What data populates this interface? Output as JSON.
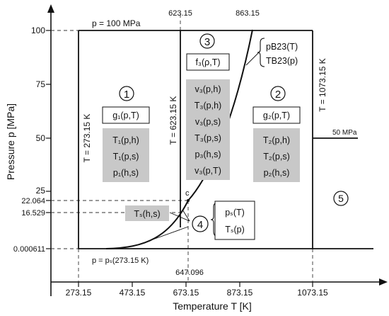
{
  "axes": {
    "x_label": "Temperature T [K]",
    "y_label": "Pressure p [MPa]",
    "x_ticks": [
      "273.15",
      "473.15",
      "673.15",
      "873.15",
      "1073.15"
    ],
    "y_ticks": [
      "100",
      "75",
      "50",
      "25",
      "22.064",
      "16.529",
      "0.000611"
    ]
  },
  "top_labels": {
    "p_max": "p = 100 MPa",
    "t_623": "623.15",
    "t_863": "863.15"
  },
  "bottom_labels": {
    "p_melt": "p = pₛ(273.15 K)",
    "t_crit": "647.096"
  },
  "boundary_labels": {
    "t_273": "T = 273.15 K",
    "t_623": "T = 623.15 K",
    "t_1073": "T = 1073.15 K",
    "p_50": "50 MPa",
    "critical_point": "c"
  },
  "regions": {
    "r1": {
      "number": "1",
      "basic": "g₁(p,T)",
      "backward": [
        "T₁(p,h)",
        "T₁(p,s)",
        "p₁(h,s)"
      ]
    },
    "r2": {
      "number": "2",
      "basic": "g₂(p,T)",
      "backward": [
        "T₂(p,h)",
        "T₂(p,s)",
        "p₂(h,s)"
      ]
    },
    "r3": {
      "number": "3",
      "basic": "f₃(ρ,T)",
      "backward": [
        "v₃(p,h)",
        "T₃(p,h)",
        "v₃(p,s)",
        "T₃(p,s)",
        "p₃(h,s)",
        "v₃(p,T)"
      ]
    },
    "r4": {
      "number": "4",
      "equations": [
        "pₛ(T)",
        "Tₛ(p)"
      ],
      "backward": "Tₛ(h,s)"
    },
    "r5": {
      "number": "5"
    },
    "b23": {
      "equations": [
        "pB23(T)",
        "TB23(p)"
      ]
    }
  },
  "colors": {
    "line": "#111111",
    "gray_box": "#c8c8c8"
  }
}
